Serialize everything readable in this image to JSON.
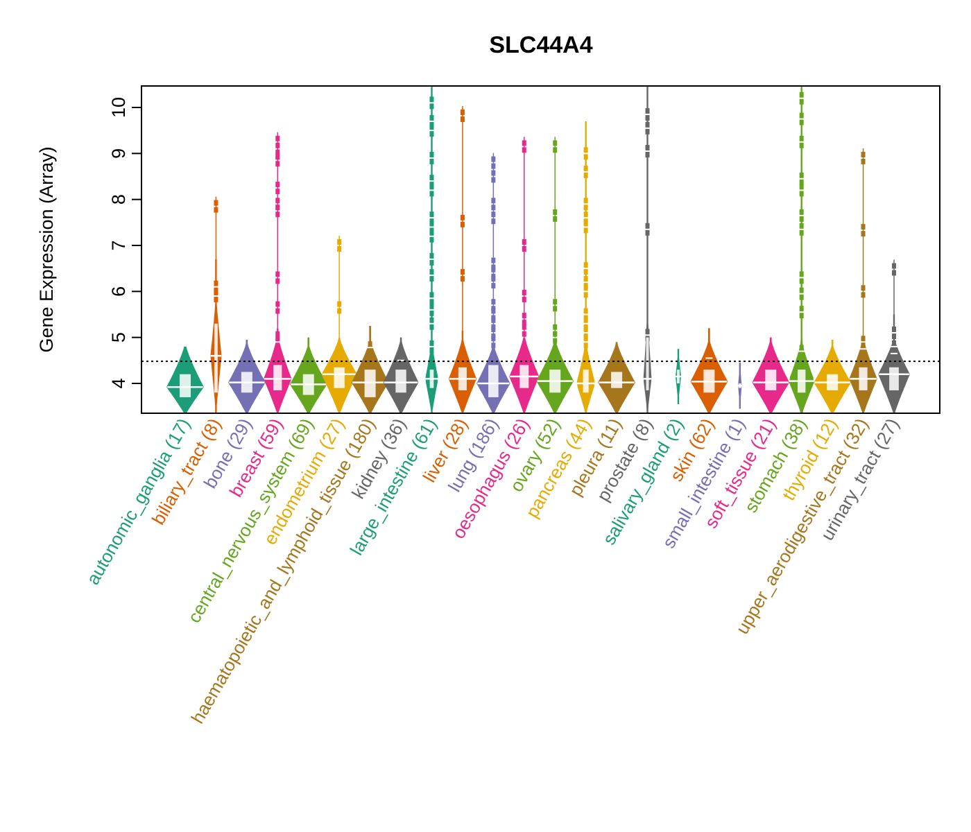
{
  "chart_data": {
    "type": "violin",
    "title": "SLC44A4",
    "xlabel": "",
    "ylabel": "Gene Expression (Array)",
    "ylim": [
      3.35,
      10.5
    ],
    "yticks": [
      4,
      5,
      6,
      7,
      8,
      9,
      10
    ],
    "reference_line": {
      "value": 4.48,
      "style": "dotted",
      "color": "#000000"
    },
    "grid": false,
    "categories": [
      {
        "name": "autonomic_ganglia",
        "n": 17,
        "label": "autonomic_ganglia (17)",
        "color": "#1B9E77",
        "min": 3.3,
        "max": 4.8,
        "median": 3.92,
        "q1": 3.7,
        "q3": 4.2,
        "width": 1.0,
        "outliers": []
      },
      {
        "name": "biliary_tract",
        "n": 8,
        "label": "biliary_tract (8)",
        "color": "#D95F02",
        "min": 3.3,
        "max": 6.7,
        "median": 4.6,
        "q1": 3.8,
        "q3": 5.3,
        "width": 0.3,
        "outliers": [
          7.85,
          6.1,
          5.9
        ]
      },
      {
        "name": "bone",
        "n": 29,
        "label": "bone (29)",
        "color": "#7570B3",
        "min": 3.3,
        "max": 4.95,
        "median": 4.02,
        "q1": 3.8,
        "q3": 4.25,
        "width": 1.0,
        "outliers": []
      },
      {
        "name": "breast",
        "n": 59,
        "label": "breast (59)",
        "color": "#E7298A",
        "min": 3.3,
        "max": 5.2,
        "median": 4.1,
        "q1": 3.85,
        "q3": 4.4,
        "width": 0.75,
        "outliers": [
          9.25,
          8.95,
          8.85,
          8.25,
          7.9,
          7.75,
          6.3,
          5.65,
          5.0,
          4.9
        ]
      },
      {
        "name": "central_nervous_system",
        "n": 69,
        "label": "central_nervous_system (69)",
        "color": "#66A61E",
        "min": 3.3,
        "max": 5.0,
        "median": 3.98,
        "q1": 3.75,
        "q3": 4.2,
        "width": 1.0,
        "outliers": []
      },
      {
        "name": "endometrium",
        "n": 27,
        "label": "endometrium (27)",
        "color": "#E6AB02",
        "min": 3.3,
        "max": 5.0,
        "median": 4.2,
        "q1": 3.9,
        "q3": 4.35,
        "width": 0.95,
        "outliers": [
          7.0,
          5.65
        ]
      },
      {
        "name": "haematopoietic_and_lymphoid_tissue",
        "n": 180,
        "label": "haematopoietic_and_lymphoid_tissue (180)",
        "color": "#A6761D",
        "min": 3.3,
        "max": 5.25,
        "median": 4.02,
        "q1": 3.7,
        "q3": 4.3,
        "width": 1.0,
        "outliers": [
          4.78
        ]
      },
      {
        "name": "kidney",
        "n": 36,
        "label": "kidney (36)",
        "color": "#666666",
        "min": 3.3,
        "max": 5.0,
        "median": 4.02,
        "q1": 3.8,
        "q3": 4.3,
        "width": 0.95,
        "outliers": [
          4.5
        ]
      },
      {
        "name": "large_intestine",
        "n": 61,
        "label": "large_intestine (61)",
        "color": "#1B9E77",
        "min": 3.3,
        "max": 10.45,
        "median": 4.1,
        "q1": 3.9,
        "q3": 4.3,
        "width": 0.35,
        "outliers": [
          10.1,
          9.7,
          9.5,
          8.9,
          8.4,
          8.2,
          7.6,
          7.4,
          7.2,
          6.7,
          6.35,
          5.85,
          5.6,
          5.3,
          4.8
        ]
      },
      {
        "name": "liver",
        "n": 28,
        "label": "liver (28)",
        "color": "#D95F02",
        "min": 3.3,
        "max": 5.15,
        "median": 4.1,
        "q1": 3.85,
        "q3": 4.35,
        "width": 0.75,
        "outliers": [
          9.82,
          7.53,
          6.35
        ]
      },
      {
        "name": "lung",
        "n": 186,
        "label": "lung (186)",
        "color": "#7570B3",
        "min": 3.3,
        "max": 4.8,
        "median": 4.0,
        "q1": 3.7,
        "q3": 4.4,
        "width": 0.9,
        "outliers": [
          8.8,
          8.5,
          7.9,
          7.6,
          6.6,
          6.4,
          6.2,
          5.7,
          5.5,
          5.3,
          5.1,
          4.9
        ]
      },
      {
        "name": "oesophagus",
        "n": 26,
        "label": "oesophagus (26)",
        "color": "#E7298A",
        "min": 3.3,
        "max": 5.0,
        "median": 4.15,
        "q1": 3.9,
        "q3": 4.4,
        "width": 0.8,
        "outliers": [
          9.15,
          7.0,
          5.9,
          5.4,
          5.15
        ]
      },
      {
        "name": "ovary",
        "n": 52,
        "label": "ovary (52)",
        "color": "#66A61E",
        "min": 3.3,
        "max": 5.0,
        "median": 4.05,
        "q1": 3.8,
        "q3": 4.3,
        "width": 1.0,
        "outliers": [
          9.15,
          7.65,
          5.7,
          5.15,
          5.0
        ]
      },
      {
        "name": "pancreas",
        "n": 44,
        "label": "pancreas (44)",
        "color": "#E6AB02",
        "min": 3.3,
        "max": 9.7,
        "median": 4.0,
        "q1": 3.8,
        "q3": 4.3,
        "width": 0.5,
        "outliers": [
          9.0,
          8.6,
          7.9,
          7.6,
          7.4,
          6.5,
          6.2,
          6.0,
          5.5,
          5.3,
          5.1,
          4.9
        ]
      },
      {
        "name": "pleura",
        "n": 11,
        "label": "pleura (11)",
        "color": "#A6761D",
        "min": 3.3,
        "max": 4.9,
        "median": 4.02,
        "q1": 3.9,
        "q3": 4.25,
        "width": 1.0,
        "outliers": []
      },
      {
        "name": "prostate",
        "n": 8,
        "label": "prostate (8)",
        "color": "#666666",
        "min": 3.3,
        "max": 10.45,
        "median": 4.1,
        "q1": 3.85,
        "q3": 5.0,
        "width": 0.22,
        "outliers": [
          9.85,
          9.55,
          9.05,
          7.35,
          5.05
        ]
      },
      {
        "name": "salivary_gland",
        "n": 2,
        "label": "salivary_gland (2)",
        "color": "#1B9E77",
        "min": 3.55,
        "max": 4.75,
        "median": 4.15,
        "q1": 4.0,
        "q3": 4.3,
        "width": 0.15,
        "outliers": []
      },
      {
        "name": "skin",
        "n": 62,
        "label": "skin (62)",
        "color": "#D95F02",
        "min": 3.3,
        "max": 5.2,
        "median": 4.04,
        "q1": 3.8,
        "q3": 4.3,
        "width": 1.0,
        "outliers": [
          4.55
        ]
      },
      {
        "name": "small_intestine",
        "n": 1,
        "label": "small_intestine (1)",
        "color": "#7570B3",
        "min": 3.45,
        "max": 4.45,
        "median": 3.95,
        "q1": 3.9,
        "q3": 4.0,
        "width": 0.1,
        "outliers": []
      },
      {
        "name": "soft_tissue",
        "n": 21,
        "label": "soft_tissue (21)",
        "color": "#E7298A",
        "min": 3.3,
        "max": 5.0,
        "median": 4.02,
        "q1": 3.85,
        "q3": 4.3,
        "width": 1.0,
        "outliers": []
      },
      {
        "name": "stomach",
        "n": 38,
        "label": "stomach (38)",
        "color": "#66A61E",
        "min": 3.3,
        "max": 10.45,
        "median": 4.05,
        "q1": 3.8,
        "q3": 4.3,
        "width": 0.7,
        "outliers": [
          10.2,
          9.75,
          9.25,
          8.45,
          8.2,
          7.65,
          7.35,
          6.3,
          5.95,
          5.55,
          4.7
        ]
      },
      {
        "name": "thyroid",
        "n": 12,
        "label": "thyroid (12)",
        "color": "#E6AB02",
        "min": 3.3,
        "max": 4.95,
        "median": 4.02,
        "q1": 3.85,
        "q3": 4.2,
        "width": 1.0,
        "outliers": []
      },
      {
        "name": "upper_aerodigestive_tract",
        "n": 32,
        "label": "upper_aerodigestive_tract (32)",
        "color": "#A6761D",
        "min": 3.3,
        "max": 5.0,
        "median": 4.1,
        "q1": 3.85,
        "q3": 4.35,
        "width": 0.75,
        "outliers": [
          8.9,
          7.33,
          6.0,
          4.9,
          4.75
        ]
      },
      {
        "name": "urinary_tract",
        "n": 27,
        "label": "urinary_tract (27)",
        "color": "#666666",
        "min": 3.3,
        "max": 5.5,
        "median": 4.2,
        "q1": 3.85,
        "q3": 4.35,
        "width": 0.85,
        "outliers": [
          6.48,
          5.1,
          4.8,
          4.65
        ]
      }
    ]
  }
}
